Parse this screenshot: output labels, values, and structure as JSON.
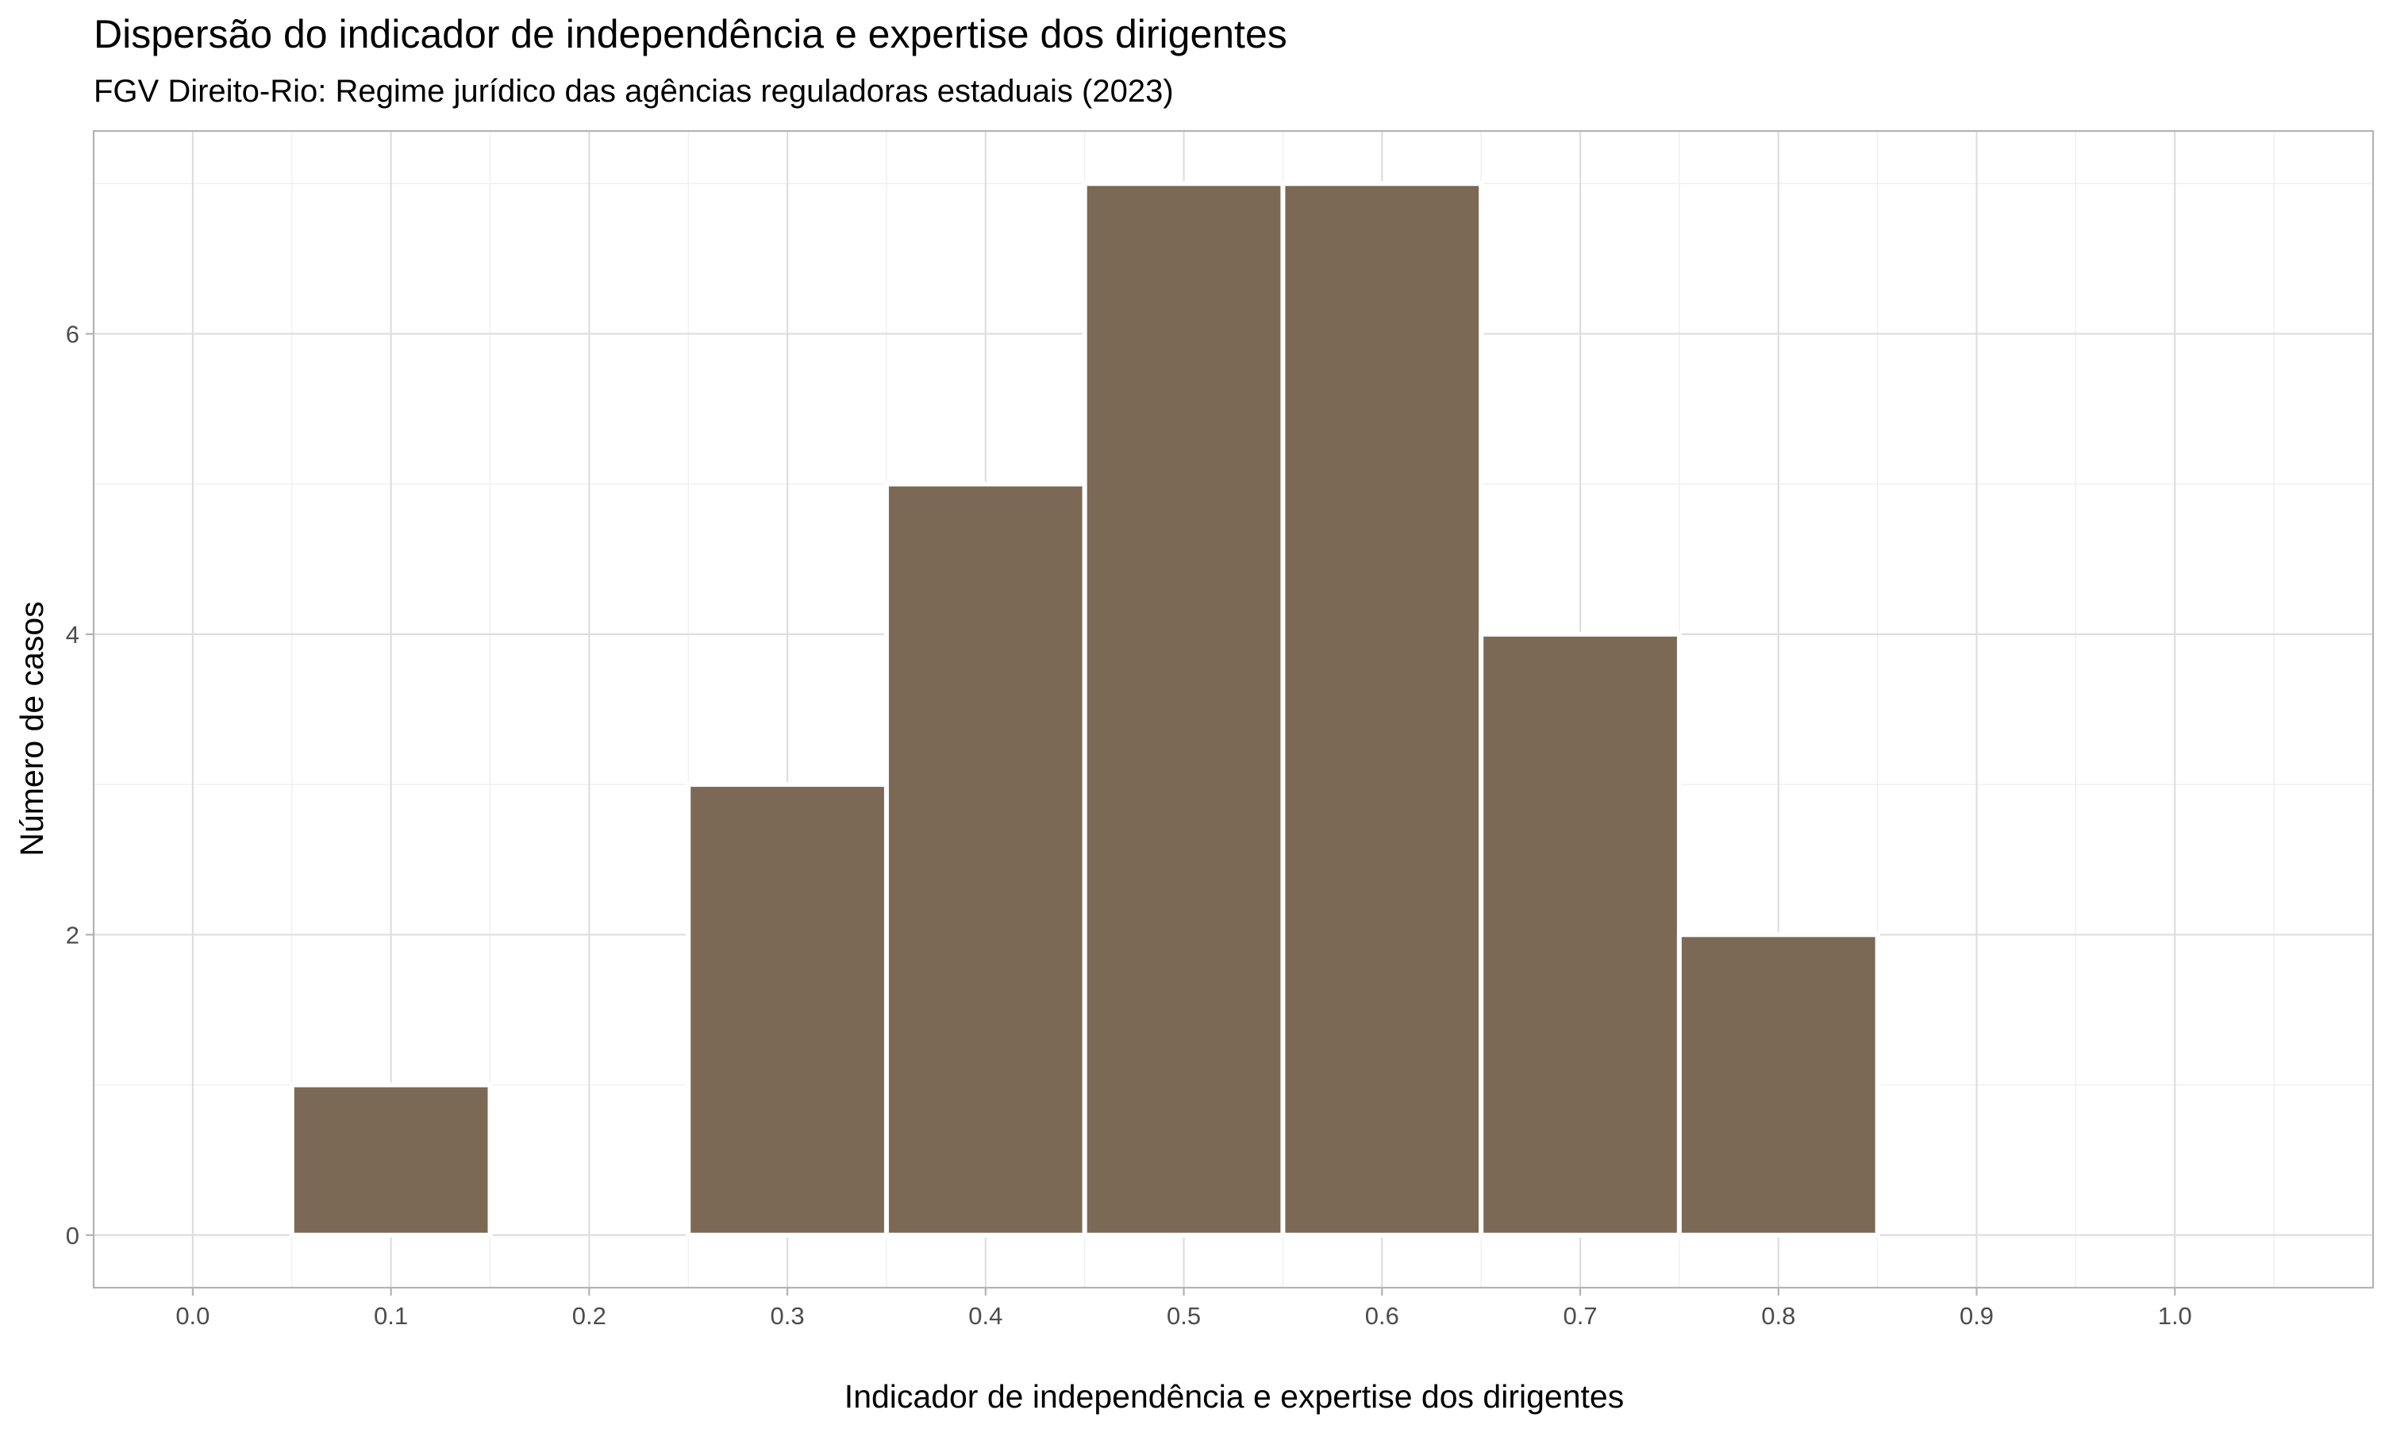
{
  "chart_data": {
    "type": "bar",
    "title": "Dispersão do indicador de independência e expertise dos dirigentes",
    "subtitle": "FGV Direito-Rio: Regime jurídico das agências reguladoras estaduais (2023)",
    "xlabel": "Indicador de independência e expertise dos dirigentes",
    "ylabel": "Número de casos",
    "bar_color": "#7B6955",
    "bar_outline": "#ffffff",
    "bin_width": 0.1,
    "x": [
      0.1,
      0.3,
      0.4,
      0.5,
      0.6,
      0.7,
      0.8
    ],
    "values": [
      1,
      3,
      5,
      7,
      7,
      4,
      2
    ],
    "xlim": [
      -0.05,
      1.1
    ],
    "ylim": [
      -0.35,
      7.35
    ],
    "x_ticks": [
      0.0,
      0.1,
      0.2,
      0.3,
      0.4,
      0.5,
      0.6,
      0.7,
      0.8,
      0.9,
      1.0
    ],
    "x_tick_labels": [
      "0.0",
      "0.1",
      "0.2",
      "0.3",
      "0.4",
      "0.5",
      "0.6",
      "0.7",
      "0.8",
      "0.9",
      "1.0"
    ],
    "y_ticks": [
      0,
      2,
      4,
      6
    ],
    "y_tick_labels": [
      "0",
      "2",
      "4",
      "6"
    ],
    "grid": true,
    "legend": "none"
  }
}
